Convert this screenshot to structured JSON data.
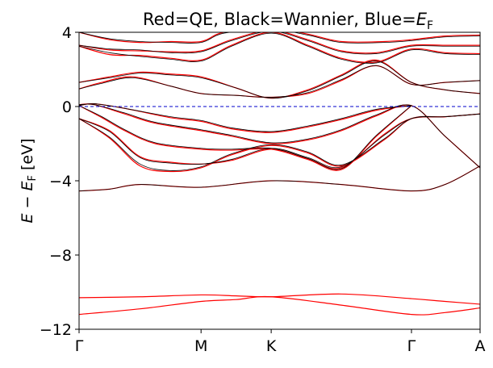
{
  "chart_data": {
    "type": "line",
    "title": {
      "prefix": "Red=QE, Black=Wannier, Blue=",
      "symbol": "E",
      "subscript": "F"
    },
    "ylabel": {
      "prefix": "E",
      "minus": " − ",
      "symbol": "E",
      "subscript": "F",
      "unit": " [eV]"
    },
    "xlabel": "",
    "ylim": [
      -12,
      4
    ],
    "yticks": [
      {
        "value": -12,
        "label": "−12"
      },
      {
        "value": -8,
        "label": "−8"
      },
      {
        "value": -4,
        "label": "−4"
      },
      {
        "value": 0,
        "label": "0"
      },
      {
        "value": 4,
        "label": "4"
      }
    ],
    "xlim": [
      0,
      2.63
    ],
    "high_symmetry_points": [
      {
        "label": "Γ",
        "x": 0.0
      },
      {
        "label": "M",
        "x": 0.8
      },
      {
        "label": "K",
        "x": 1.26
      },
      {
        "label": "Γ",
        "x": 2.18
      },
      {
        "label": "A",
        "x": 2.63
      }
    ],
    "fermi_level": 0.0,
    "colors": {
      "qe": "#ff0000",
      "wannier": "#000000",
      "fermi": "#0000cc"
    },
    "series": [
      {
        "name": "QE",
        "color": "#ff0000",
        "bands": [
          {
            "x": [
              0,
              0.4,
              0.8,
              1.03,
              1.26,
              1.72,
              2.18,
              2.4,
              2.63
            ],
            "y": [
              -11.2,
              -10.9,
              -10.5,
              -10.4,
              -10.25,
              -10.7,
              -11.2,
              -11.1,
              -10.85
            ]
          },
          {
            "x": [
              0,
              0.4,
              0.8,
              1.03,
              1.26,
              1.72,
              2.18,
              2.4,
              2.63
            ],
            "y": [
              -10.3,
              -10.25,
              -10.15,
              -10.2,
              -10.25,
              -10.1,
              -10.35,
              -10.5,
              -10.65
            ]
          },
          {
            "x": [
              0,
              0.2,
              0.4,
              0.8,
              1.26,
              1.72,
              2.18,
              2.4,
              2.63
            ],
            "y": [
              -4.55,
              -4.45,
              -4.2,
              -4.35,
              -4.0,
              -4.2,
              -4.55,
              -4.2,
              -3.2
            ]
          },
          {
            "x": [
              0,
              0.2,
              0.4,
              0.6,
              0.8,
              1.0,
              1.26,
              1.5,
              1.72,
              2.0,
              2.18,
              2.4,
              2.63
            ],
            "y": [
              -0.65,
              -1.7,
              -3.2,
              -3.5,
              -3.3,
              -2.6,
              -2.1,
              -2.5,
              -3.2,
              -1.8,
              -0.65,
              -0.55,
              -0.4
            ]
          },
          {
            "x": [
              0,
              0.2,
              0.4,
              0.6,
              0.8,
              1.0,
              1.26,
              1.5,
              1.72,
              2.0,
              2.18,
              2.4,
              2.63
            ],
            "y": [
              -0.65,
              -1.3,
              -2.7,
              -3.0,
              -3.1,
              -2.9,
              -2.3,
              -2.8,
              -3.3,
              -1.5,
              -0.65,
              -0.55,
              -0.4
            ]
          },
          {
            "x": [
              0,
              0.15,
              0.3,
              0.5,
              0.8,
              1.0,
              1.26,
              1.5,
              1.72,
              1.95,
              2.18
            ],
            "y": [
              0.05,
              -0.6,
              -1.3,
              -2.0,
              -2.3,
              -2.35,
              -2.3,
              -2.85,
              -3.4,
              -1.6,
              0.05
            ]
          },
          {
            "x": [
              0,
              0.1,
              0.3,
              0.5,
              0.8,
              1.0,
              1.26,
              1.5,
              1.72,
              1.95,
              2.18,
              2.4,
              2.63
            ],
            "y": [
              0.1,
              0.1,
              -0.4,
              -0.9,
              -1.3,
              -1.6,
              -2.0,
              -1.8,
              -1.3,
              -0.5,
              0.05,
              -1.6,
              -3.3
            ]
          },
          {
            "x": [
              0,
              0.1,
              0.3,
              0.6,
              0.8,
              1.0,
              1.26,
              1.5,
              1.72,
              1.95,
              2.18
            ],
            "y": [
              0.05,
              0.15,
              -0.1,
              -0.6,
              -0.8,
              -1.2,
              -1.4,
              -1.1,
              -0.7,
              -0.2,
              0.05
            ]
          },
          {
            "x": [
              0,
              0.15,
              0.35,
              0.6,
              0.8,
              1.03,
              1.26,
              1.5,
              1.72,
              1.95,
              2.18,
              2.4,
              2.63
            ],
            "y": [
              0.95,
              1.3,
              1.6,
              1.1,
              0.7,
              0.6,
              0.5,
              0.7,
              1.4,
              2.2,
              1.2,
              1.3,
              1.4
            ]
          },
          {
            "x": [
              0,
              0.2,
              0.4,
              0.6,
              0.8,
              1.03,
              1.26,
              1.5,
              1.72,
              1.95,
              2.18,
              2.4,
              2.63
            ],
            "y": [
              1.3,
              1.6,
              1.85,
              1.75,
              1.6,
              1.0,
              0.45,
              0.9,
              1.7,
              2.5,
              1.3,
              0.9,
              0.7
            ]
          },
          {
            "x": [
              0,
              0.2,
              0.4,
              0.6,
              0.8,
              1.0,
              1.26,
              1.5,
              1.72,
              1.95,
              2.18,
              2.4,
              2.63
            ],
            "y": [
              3.25,
              2.8,
              2.75,
              2.6,
              2.5,
              3.3,
              4.0,
              3.3,
              2.6,
              2.4,
              3.1,
              2.9,
              2.85
            ]
          },
          {
            "x": [
              0,
              0.2,
              0.4,
              0.6,
              0.8,
              1.0,
              1.26,
              1.5,
              1.72,
              1.95,
              2.18,
              2.4,
              2.63
            ],
            "y": [
              3.3,
              3.05,
              3.0,
              2.95,
              3.0,
              3.6,
              4.1,
              3.6,
              3.0,
              2.9,
              3.3,
              3.3,
              3.3
            ]
          },
          {
            "x": [
              0,
              0.2,
              0.4,
              0.6,
              0.8,
              0.95,
              1.26,
              1.5,
              1.72,
              2.0,
              2.18,
              2.4,
              2.63
            ],
            "y": [
              4.0,
              3.6,
              3.45,
              3.5,
              3.5,
              4.0,
              4.2,
              3.9,
              3.5,
              3.5,
              3.6,
              3.8,
              3.85
            ]
          }
        ]
      },
      {
        "name": "Wannier",
        "color": "#000000",
        "bands": [
          {
            "x": [
              0,
              0.2,
              0.4,
              0.8,
              1.26,
              1.72,
              2.18,
              2.4,
              2.63
            ],
            "y": [
              -4.55,
              -4.45,
              -4.2,
              -4.35,
              -4.0,
              -4.2,
              -4.55,
              -4.2,
              -3.2
            ]
          },
          {
            "x": [
              0,
              0.2,
              0.4,
              0.6,
              0.8,
              1.0,
              1.26,
              1.5,
              1.72,
              2.0,
              2.18,
              2.4,
              2.63
            ],
            "y": [
              -0.65,
              -1.65,
              -3.1,
              -3.45,
              -3.25,
              -2.55,
              -2.05,
              -2.45,
              -3.15,
              -1.75,
              -0.65,
              -0.55,
              -0.4
            ]
          },
          {
            "x": [
              0,
              0.2,
              0.4,
              0.6,
              0.8,
              1.0,
              1.26,
              1.5,
              1.72,
              2.0,
              2.18,
              2.4,
              2.63
            ],
            "y": [
              -0.65,
              -1.35,
              -2.75,
              -3.05,
              -3.1,
              -2.85,
              -2.25,
              -2.75,
              -3.25,
              -1.55,
              -0.65,
              -0.55,
              -0.4
            ]
          },
          {
            "x": [
              0,
              0.15,
              0.3,
              0.5,
              0.8,
              1.0,
              1.26,
              1.5,
              1.72,
              1.95,
              2.18
            ],
            "y": [
              0.05,
              -0.55,
              -1.25,
              -1.95,
              -2.25,
              -2.3,
              -2.25,
              -2.8,
              -3.35,
              -1.55,
              0.05
            ]
          },
          {
            "x": [
              0,
              0.1,
              0.3,
              0.5,
              0.8,
              1.0,
              1.26,
              1.5,
              1.72,
              1.95,
              2.18,
              2.4,
              2.63
            ],
            "y": [
              0.1,
              0.1,
              -0.35,
              -0.85,
              -1.25,
              -1.55,
              -1.95,
              -1.75,
              -1.25,
              -0.45,
              0.05,
              -1.6,
              -3.3
            ]
          },
          {
            "x": [
              0,
              0.1,
              0.3,
              0.6,
              0.8,
              1.0,
              1.26,
              1.5,
              1.72,
              1.95,
              2.18
            ],
            "y": [
              0.05,
              0.15,
              -0.1,
              -0.55,
              -0.75,
              -1.15,
              -1.35,
              -1.05,
              -0.65,
              -0.15,
              0.05
            ]
          },
          {
            "x": [
              0,
              0.15,
              0.35,
              0.6,
              0.8,
              1.03,
              1.26,
              1.5,
              1.72,
              1.95,
              2.18,
              2.4,
              2.63
            ],
            "y": [
              0.95,
              1.25,
              1.55,
              1.1,
              0.7,
              0.6,
              0.5,
              0.75,
              1.45,
              2.2,
              1.2,
              1.3,
              1.4
            ]
          },
          {
            "x": [
              0,
              0.2,
              0.4,
              0.6,
              0.8,
              1.03,
              1.26,
              1.5,
              1.72,
              1.95,
              2.18,
              2.4,
              2.63
            ],
            "y": [
              1.3,
              1.55,
              1.8,
              1.7,
              1.55,
              1.0,
              0.45,
              0.85,
              1.65,
              2.45,
              1.3,
              0.9,
              0.7
            ]
          },
          {
            "x": [
              0,
              0.2,
              0.4,
              0.6,
              0.8,
              1.0,
              1.26,
              1.5,
              1.72,
              1.95,
              2.18,
              2.4,
              2.63
            ],
            "y": [
              3.25,
              2.9,
              2.7,
              2.55,
              2.45,
              3.25,
              3.95,
              3.25,
              2.55,
              2.35,
              3.05,
              2.85,
              2.8
            ]
          },
          {
            "x": [
              0,
              0.2,
              0.4,
              0.6,
              0.8,
              1.0,
              1.26,
              1.5,
              1.72,
              1.95,
              2.18,
              2.4,
              2.63
            ],
            "y": [
              3.3,
              3.1,
              3.05,
              2.9,
              2.95,
              3.55,
              4.05,
              3.55,
              2.95,
              2.85,
              3.25,
              3.25,
              3.25
            ]
          },
          {
            "x": [
              0,
              0.2,
              0.4,
              0.6,
              0.8,
              0.95,
              1.26,
              1.5,
              1.72,
              2.0,
              2.18,
              2.4,
              2.63
            ],
            "y": [
              4.0,
              3.65,
              3.5,
              3.45,
              3.45,
              3.95,
              4.15,
              3.85,
              3.45,
              3.45,
              3.55,
              3.75,
              3.8
            ]
          }
        ]
      }
    ]
  }
}
